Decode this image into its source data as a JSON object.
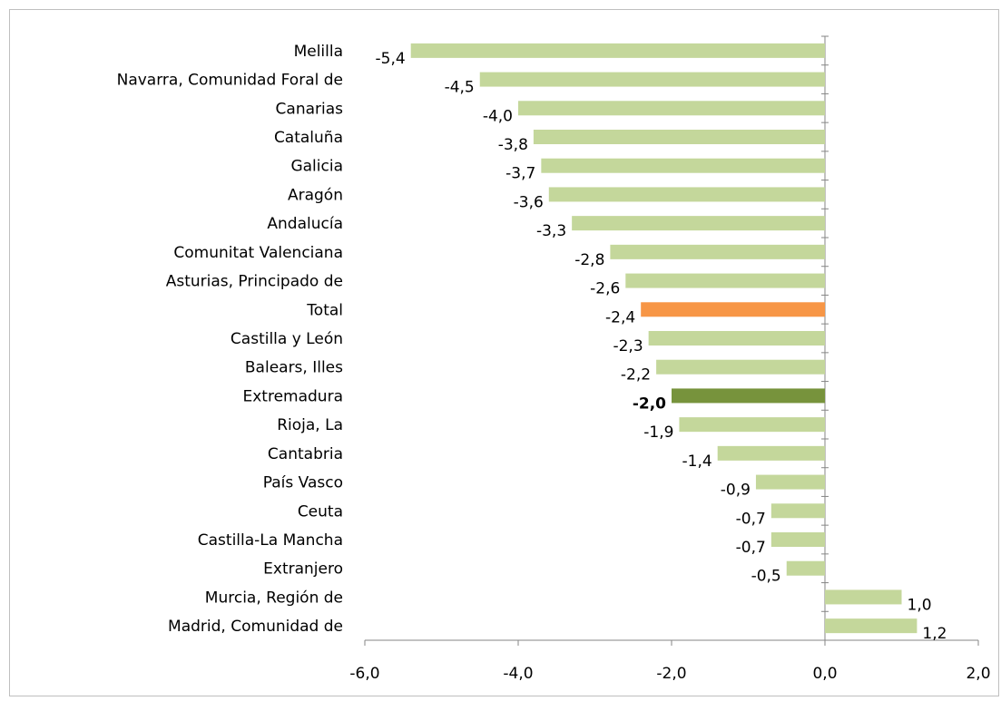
{
  "chart_data": {
    "type": "barh",
    "categories": [
      "Melilla",
      "Navarra, Comunidad Foral de",
      "Canarias",
      "Cataluña",
      "Galicia",
      "Aragón",
      "Andalucía",
      "Comunitat Valenciana",
      "Asturias, Principado de",
      "Total",
      "Castilla y León",
      "Balears, Illes",
      "Extremadura",
      "Rioja, La",
      "Cantabria",
      "País Vasco",
      "Ceuta",
      "Castilla-La Mancha",
      "Extranjero",
      "Murcia, Región de",
      "Madrid, Comunidad de"
    ],
    "values": [
      -5.4,
      -4.5,
      -4.0,
      -3.8,
      -3.7,
      -3.6,
      -3.3,
      -2.8,
      -2.6,
      -2.4,
      -2.3,
      -2.2,
      -2.0,
      -1.9,
      -1.4,
      -0.9,
      -0.7,
      -0.7,
      -0.5,
      1.0,
      1.2
    ],
    "value_labels": [
      "-5,4",
      "-4,5",
      "-4,0",
      "-3,8",
      "-3,7",
      "-3,6",
      "-3,3",
      "-2,8",
      "-2,6",
      "-2,4",
      "-2,3",
      "-2,2",
      "-2,0",
      "-1,9",
      "-1,4",
      "-0,9",
      "-0,7",
      "-0,7",
      "-0,5",
      "1,0",
      "1,2"
    ],
    "colors": [
      "#c4d79b",
      "#c4d79b",
      "#c4d79b",
      "#c4d79b",
      "#c4d79b",
      "#c4d79b",
      "#c4d79b",
      "#c4d79b",
      "#c4d79b",
      "#f79646",
      "#c4d79b",
      "#c4d79b",
      "#77933c",
      "#c4d79b",
      "#c4d79b",
      "#c4d79b",
      "#c4d79b",
      "#c4d79b",
      "#c4d79b",
      "#c4d79b",
      "#c4d79b"
    ],
    "bold_categories": [
      "Extremadura"
    ],
    "xlim": [
      -6,
      2
    ],
    "xticks": [
      {
        "value": -6,
        "label": "-6,0"
      },
      {
        "value": -4,
        "label": "-4,0"
      },
      {
        "value": -2,
        "label": "-2,0"
      },
      {
        "value": 0,
        "label": "0,0"
      },
      {
        "value": 2,
        "label": "2,0"
      }
    ]
  }
}
